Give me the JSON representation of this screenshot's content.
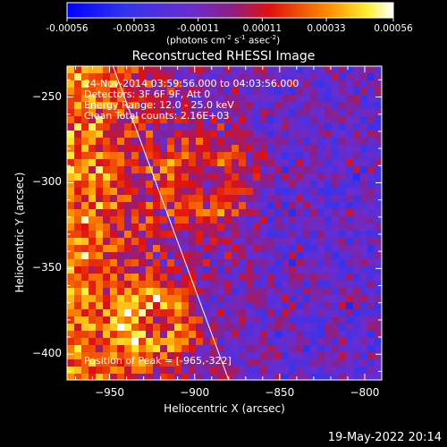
{
  "colorbar": {
    "ticks": [
      "-0.00056",
      "-0.00033",
      "-0.00011",
      "0.00011",
      "0.00033",
      "0.00056"
    ],
    "unit_main": "(photons cm",
    "unit_sup1": "-2",
    "unit_mid1": " s",
    "unit_sup2": "-1",
    "unit_mid2": " asec",
    "unit_sup3": "-2",
    "unit_end": ")"
  },
  "annotations": {
    "time_range": "24-Nov-2014 03:59:56.000 to 04:03:56.000",
    "detectors": "Detectors: 3F 6F 9F, Att 0",
    "energy": "Energy Range: 12.0 - 25.0 keV",
    "clean": "Clean     Total counts: 2.16E+03",
    "peak": "Position of Peak = [-965,-322]"
  },
  "footer": {
    "date": "19-May-2022 20:14"
  },
  "chart_data": {
    "type": "heatmap",
    "title": "Reconstructed RHESSI Image",
    "xlabel": "Heliocentric X (arcsec)",
    "ylabel": "Heliocentric Y (arcsec)",
    "xlim": [
      -975,
      -790
    ],
    "ylim": [
      -415,
      -232
    ],
    "xticks": [
      -950,
      -900,
      -850,
      -800
    ],
    "yticks": [
      -250,
      -300,
      -350,
      -400
    ],
    "limb_line": {
      "x": [
        -948,
        -880
      ],
      "y": [
        -232,
        -415
      ]
    },
    "peak": {
      "x": -965,
      "y": -322
    },
    "color_range": [
      -0.00056,
      0.00056
    ],
    "colormap": "blue-purple-red-yellow-white"
  }
}
